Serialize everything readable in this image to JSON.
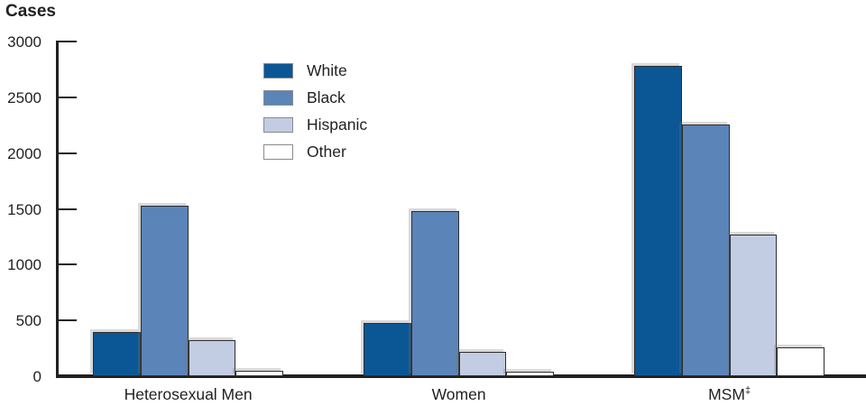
{
  "title": "Cases",
  "chart_data": {
    "type": "bar",
    "title": "Cases",
    "ylabel": "Cases",
    "xlabel": "",
    "ylim": [
      0,
      3000
    ],
    "yticks": [
      0,
      500,
      1000,
      1500,
      2000,
      2500,
      3000
    ],
    "grid": false,
    "legend_position": "upper-left-inside",
    "axis_color": "#231f20",
    "categories": [
      {
        "label": "Heterosexual Men",
        "suffix": ""
      },
      {
        "label": "Women",
        "suffix": ""
      },
      {
        "label": "MSM",
        "suffix": "‡"
      }
    ],
    "series": [
      {
        "name": "White",
        "color": "#0b5795",
        "values": [
          400,
          480,
          2780
        ]
      },
      {
        "name": "Black",
        "color": "#5b84b8",
        "values": [
          1530,
          1480,
          2260
        ]
      },
      {
        "name": "Hispanic",
        "color": "#c2cde3",
        "values": [
          320,
          220,
          1270
        ]
      },
      {
        "name": "Other",
        "color": "#ffffff",
        "values": [
          50,
          40,
          260
        ]
      }
    ]
  }
}
